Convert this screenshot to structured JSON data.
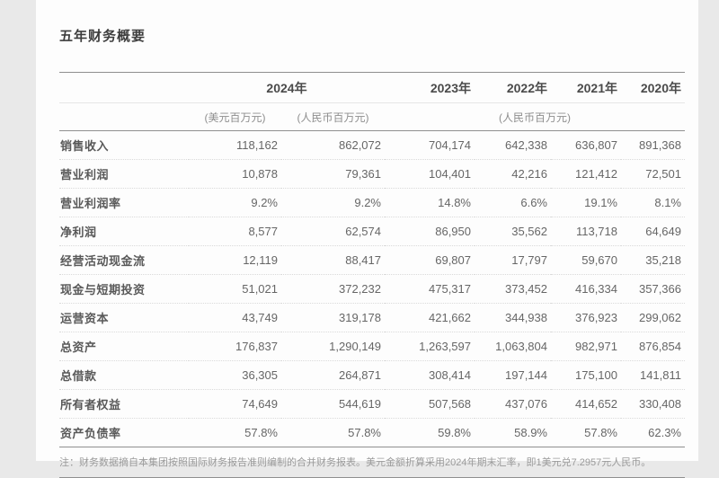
{
  "page": {
    "title": "五年财务概要",
    "note": "注：财务数据摘自本集团按照国际财务报告准则编制的合并财务报表。美元金额折算采用2024年期末汇率，即1美元兑7.2957元人民币。"
  },
  "colors": {
    "page_background": "#e9e9e9",
    "card_background": "#fdfdfd",
    "title_text": "#3d3d3d",
    "header_text": "#4a4a4a",
    "unit_text": "#8e8e8e",
    "label_text": "#595959",
    "value_text": "#666666",
    "solid_rule": "#8f8f8f",
    "dotted_rule": "#dadada",
    "note_text": "#9a9a9a"
  },
  "table": {
    "year_headers": [
      {
        "label": "2024年"
      },
      {
        "label": "2023年"
      },
      {
        "label": "2022年"
      },
      {
        "label": "2021年"
      },
      {
        "label": "2020年"
      }
    ],
    "unit_headers": [
      {
        "label": "(美元百万元)"
      },
      {
        "label": "(人民币百万元)"
      },
      {
        "label": "(人民币百万元)"
      }
    ],
    "rows": [
      {
        "label": "销售收入",
        "values": [
          "118,162",
          "862,072",
          "704,174",
          "642,338",
          "636,807",
          "891,368"
        ]
      },
      {
        "label": "营业利润",
        "values": [
          "10,878",
          "79,361",
          "104,401",
          "42,216",
          "121,412",
          "72,501"
        ]
      },
      {
        "label": "营业利润率",
        "values": [
          "9.2%",
          "9.2%",
          "14.8%",
          "6.6%",
          "19.1%",
          "8.1%"
        ]
      },
      {
        "label": "净利润",
        "values": [
          "8,577",
          "62,574",
          "86,950",
          "35,562",
          "113,718",
          "64,649"
        ]
      },
      {
        "label": "经营活动现金流",
        "values": [
          "12,119",
          "88,417",
          "69,807",
          "17,797",
          "59,670",
          "35,218"
        ]
      },
      {
        "label": "现金与短期投资",
        "values": [
          "51,021",
          "372,232",
          "475,317",
          "373,452",
          "416,334",
          "357,366"
        ]
      },
      {
        "label": "运营资本",
        "values": [
          "43,749",
          "319,178",
          "421,662",
          "344,938",
          "376,923",
          "299,062"
        ]
      },
      {
        "label": "总资产",
        "values": [
          "176,837",
          "1,290,149",
          "1,263,597",
          "1,063,804",
          "982,971",
          "876,854"
        ]
      },
      {
        "label": "总借款",
        "values": [
          "36,305",
          "264,871",
          "308,414",
          "197,144",
          "175,100",
          "141,811"
        ]
      },
      {
        "label": "所有者权益",
        "values": [
          "74,649",
          "544,619",
          "507,568",
          "437,076",
          "414,652",
          "330,408"
        ]
      },
      {
        "label": "资产负债率",
        "values": [
          "57.8%",
          "57.8%",
          "59.8%",
          "58.9%",
          "57.8%",
          "62.3%"
        ]
      }
    ]
  }
}
